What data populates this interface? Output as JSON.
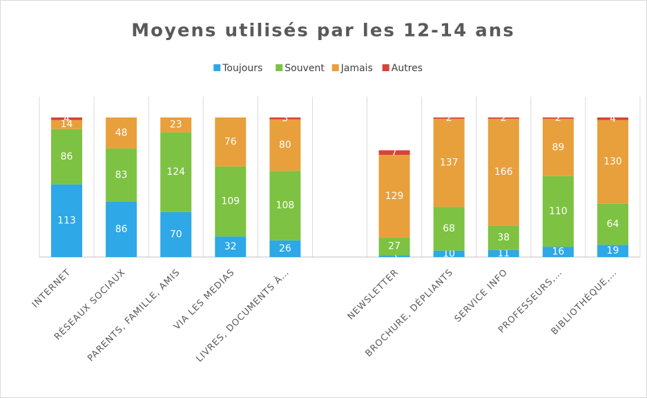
{
  "chart_data": {
    "type": "stacked_bar",
    "title": "Moyens utilisés par les 12-14 ans",
    "categories": [
      "INTERNET",
      "RÉSEAUX SOCIAUX",
      "PARENTS, FAMILLE, AMIS",
      "VIA LES MEDIAS",
      "LIVRES, DOCUMENTS À…",
      null,
      "NEWSLETTER",
      "BROCHURE, DÉPLIANTS",
      "SERVICE INFO",
      "PROFESSEURS,…",
      "BIBLIOTHÈQUE,…"
    ],
    "series": [
      {
        "name": "Toujours",
        "color": "#2ea8e6",
        "values": [
          113,
          86,
          70,
          32,
          26,
          null,
          3,
          10,
          11,
          16,
          19
        ]
      },
      {
        "name": "Souvent",
        "color": "#7dc242",
        "values": [
          86,
          83,
          124,
          109,
          108,
          null,
          27,
          68,
          38,
          110,
          64
        ]
      },
      {
        "name": "Jamais",
        "color": "#e8a03c",
        "values": [
          14,
          48,
          23,
          76,
          80,
          null,
          129,
          137,
          166,
          89,
          130
        ]
      },
      {
        "name": "Autres",
        "color": "#d9413a",
        "values": [
          4,
          null,
          null,
          null,
          3,
          null,
          7,
          2,
          2,
          2,
          4
        ]
      }
    ],
    "ylim": [
      0,
      217
    ],
    "legend": "top"
  }
}
